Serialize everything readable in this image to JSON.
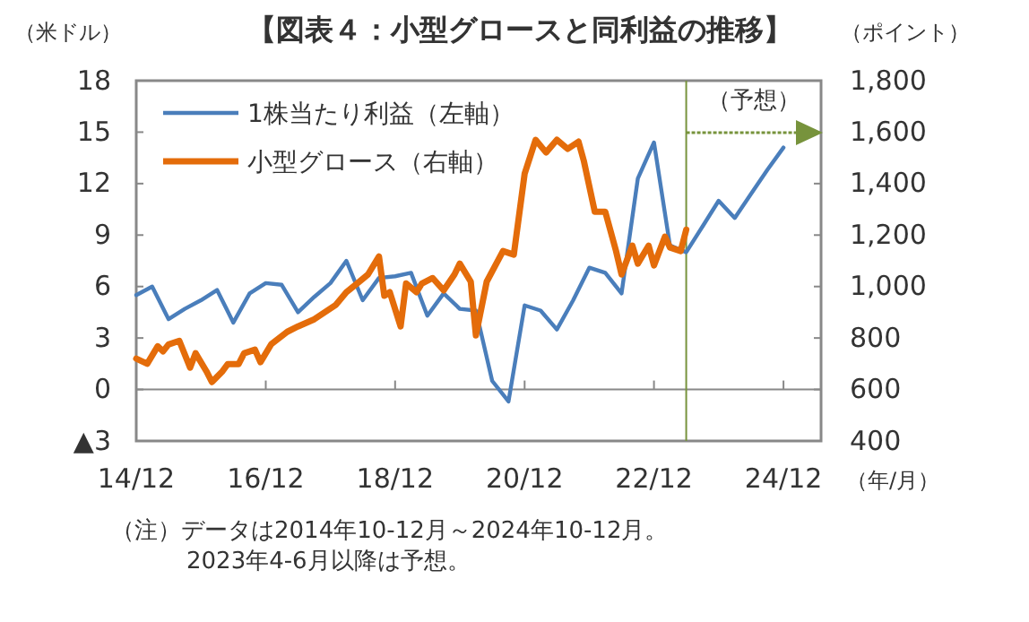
{
  "chart_data": {
    "type": "line",
    "title": "【図表４：小型グロースと同利益の推移】",
    "ylabel": "（米ドル）",
    "y2label": "（ポイント）",
    "xlabel": "（年/月）",
    "legend": "top left",
    "grid": false,
    "marker": "none",
    "line_style": "solid",
    "xlim": [
      "2014-12",
      "2025-07"
    ],
    "xticks": [
      {
        "value": "2014-12",
        "label": "14/12"
      },
      {
        "value": "2016-12",
        "label": "16/12"
      },
      {
        "value": "2018-12",
        "label": "18/12"
      },
      {
        "value": "2020-12",
        "label": "20/12"
      },
      {
        "value": "2022-12",
        "label": "22/12"
      },
      {
        "value": "2024-12",
        "label": "24/12"
      }
    ],
    "ylim": [
      -3,
      18
    ],
    "yticks": [
      {
        "value": -3,
        "label": "▲3"
      },
      0,
      3,
      6,
      9,
      12,
      15,
      18
    ],
    "y2lim": [
      400,
      1800
    ],
    "y2ticks": [
      400,
      600,
      800,
      {
        "value": 1000,
        "label": "1,000"
      },
      {
        "value": 1200,
        "label": "1,200"
      },
      {
        "value": 1400,
        "label": "1,400"
      },
      {
        "value": 1600,
        "label": "1,600"
      },
      {
        "value": 1800,
        "label": "1,800"
      }
    ],
    "series": [
      {
        "name": "1株当たり利益（左軸）",
        "color": "#4a7ebb",
        "x": [
          "2014-12",
          "2015-03",
          "2015-06",
          "2015-09",
          "2015-12",
          "2016-03",
          "2016-06",
          "2016-09",
          "2016-12",
          "2017-03",
          "2017-06",
          "2017-09",
          "2017-12",
          "2018-03",
          "2018-06",
          "2018-09",
          "2018-12",
          "2019-03",
          "2019-06",
          "2019-09",
          "2019-12",
          "2020-03",
          "2020-06",
          "2020-09",
          "2020-12",
          "2021-03",
          "2021-06",
          "2021-09",
          "2021-12",
          "2022-03",
          "2022-06",
          "2022-09",
          "2022-12",
          "2023-03",
          "2023-06",
          "2023-09",
          "2023-12",
          "2024-03",
          "2024-06",
          "2024-09",
          "2024-12"
        ],
        "values": [
          5.5,
          6.0,
          4.1,
          4.7,
          5.2,
          5.8,
          3.9,
          5.6,
          6.2,
          6.1,
          4.5,
          5.4,
          6.2,
          7.5,
          5.2,
          6.5,
          6.6,
          6.8,
          4.3,
          5.6,
          4.7,
          4.6,
          0.5,
          -0.7,
          4.9,
          4.6,
          3.5,
          5.2,
          7.1,
          6.8,
          5.6,
          12.3,
          14.4,
          8.4,
          8.0,
          9.5,
          11.0,
          10.0,
          11.4,
          12.8,
          14.1
        ]
      },
      {
        "name": "小型グロース（右軸）",
        "color": "#e46c0a",
        "axis": "y2",
        "x": [
          "2014-12",
          "2015-02",
          "2015-04",
          "2015-05",
          "2015-06",
          "2015-08",
          "2015-10",
          "2015-11",
          "2016-01",
          "2016-02",
          "2016-04",
          "2016-05",
          "2016-07",
          "2016-08",
          "2016-10",
          "2016-11",
          "2017-01",
          "2017-04",
          "2017-06",
          "2017-09",
          "2018-01",
          "2018-03",
          "2018-05",
          "2018-07",
          "2018-09",
          "2018-10",
          "2018-11",
          "2019-01",
          "2019-02",
          "2019-04",
          "2019-05",
          "2019-07",
          "2019-09",
          "2019-11",
          "2019-12",
          "2020-02",
          "2020-03",
          "2020-05",
          "2020-08",
          "2020-10",
          "2020-12",
          "2021-02",
          "2021-04",
          "2021-06",
          "2021-08",
          "2021-10",
          "2021-11",
          "2022-01",
          "2022-03",
          "2022-05",
          "2022-06",
          "2022-08",
          "2022-09",
          "2022-11",
          "2022-12",
          "2023-02",
          "2023-03",
          "2023-05",
          "2023-06"
        ],
        "values": [
          720,
          700,
          768,
          748,
          775,
          789,
          685,
          741,
          671,
          629,
          671,
          699,
          699,
          741,
          755,
          706,
          776,
          824,
          845,
          873,
          929,
          978,
          1012,
          1047,
          1117,
          964,
          978,
          845,
          1012,
          978,
          1012,
          1033,
          985,
          1047,
          1089,
          1019,
          810,
          1019,
          1138,
          1124,
          1438,
          1570,
          1521,
          1570,
          1535,
          1563,
          1486,
          1291,
          1291,
          1138,
          1047,
          1159,
          1089,
          1159,
          1082,
          1194,
          1152,
          1138,
          1221
        ]
      }
    ],
    "ref_lines": [
      {
        "axis": "y",
        "value": 0,
        "color": "#888888",
        "line_style": "solid"
      },
      {
        "axis": "x",
        "value": "2023-06",
        "label": "（予想）",
        "color": "#77933c",
        "line_style": "solid"
      }
    ],
    "annotations": [
      "（注）データは2014年10-12月～2024年10-12月。",
      "2023年4-6月以降は予想。"
    ]
  }
}
